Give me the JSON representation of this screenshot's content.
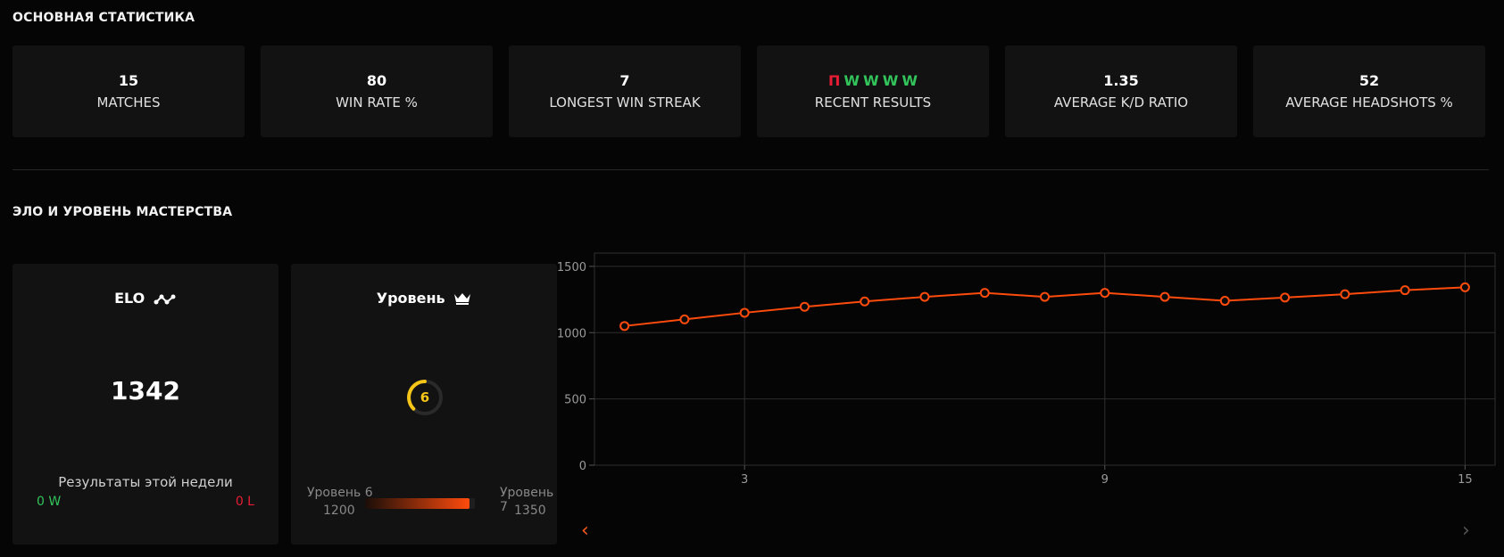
{
  "sections": {
    "main_stats_title": "ОСНОВНАЯ СТАТИСТИКА",
    "elo_title": "ЭЛО И УРОВЕНЬ МАСТЕРСТВА"
  },
  "stats": [
    {
      "value": "15",
      "label": "MATCHES"
    },
    {
      "value": "80",
      "label": "WIN RATE %"
    },
    {
      "value": "7",
      "label": "LONGEST WIN STREAK"
    },
    {
      "value": "",
      "label": "RECENT RESULTS"
    },
    {
      "value": "1.35",
      "label": "AVERAGE K/D RATIO"
    },
    {
      "value": "52",
      "label": "AVERAGE HEADSHOTS %"
    }
  ],
  "recent_results": [
    "П",
    "W",
    "W",
    "W",
    "W"
  ],
  "elo_panel": {
    "title": "ELO",
    "icon": "elo-trend-icon",
    "value": "1342",
    "week_label": "Результаты этой недели",
    "week_wins": "0 W",
    "week_losses": "0 L"
  },
  "level_panel": {
    "title": "Уровень",
    "icon": "crown-icon",
    "level": "6",
    "progress": 0.95,
    "current_level_name": "Уровень 6",
    "current_level_elo": "1200",
    "next_level_name": "Уровень 7",
    "next_level_elo": "1350"
  },
  "colors": {
    "accent": "#ff4b0d",
    "win": "#32c45a",
    "loss": "#e81c35",
    "level": "#f5c518"
  },
  "chart_data": {
    "type": "line",
    "x": [
      1,
      2,
      3,
      4,
      5,
      6,
      7,
      8,
      9,
      10,
      11,
      12,
      13,
      14,
      15
    ],
    "series": [
      {
        "values": [
          1050,
          1100,
          1150,
          1195,
          1235,
          1270,
          1300,
          1270,
          1300,
          1270,
          1240,
          1265,
          1290,
          1320,
          1342
        ]
      }
    ],
    "x_ticks": [
      3,
      9,
      15
    ],
    "y_ticks": [
      0,
      500,
      1000,
      1500
    ],
    "ylim": [
      0,
      1600
    ],
    "xlim": [
      0.5,
      15.5
    ],
    "grid": true,
    "color": "#ff4b0d"
  }
}
